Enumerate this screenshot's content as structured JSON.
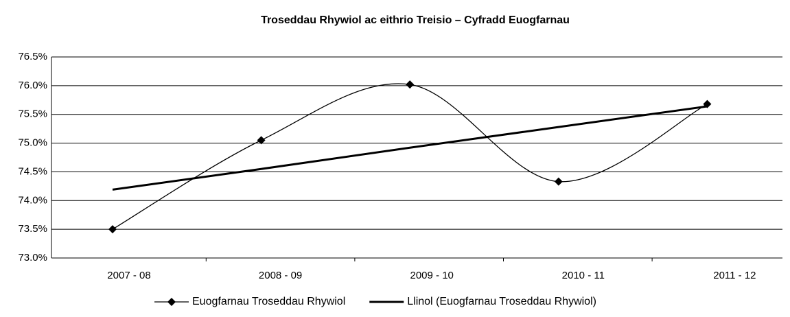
{
  "chart_data": {
    "type": "line",
    "title": "Troseddau Rhywiol ac eithrio Treisio – Cyfradd Euogfarnau",
    "categories": [
      "2007 - 08",
      "2008 - 09",
      "2009 - 10",
      "2010 - 11",
      "2011 - 12"
    ],
    "series": [
      {
        "name": "Euogfarnau Troseddau Rhywiol",
        "color": "#000000",
        "values": [
          73.5,
          75.05,
          76.02,
          74.33,
          75.68
        ],
        "smooth": true,
        "marker": "diamond"
      },
      {
        "name": "Llinol (Euogfarnau Troseddau Rhywiol)",
        "color": "#000000",
        "values": [
          74.19,
          74.55,
          74.92,
          75.28,
          75.64
        ],
        "smooth": false
      }
    ],
    "ylim": [
      73,
      76.5
    ],
    "yticks": [
      {
        "value": 73,
        "label": "73.0%"
      },
      {
        "value": 73.5,
        "label": "73.5%"
      },
      {
        "value": 74,
        "label": "74.0%"
      },
      {
        "value": 74.5,
        "label": "74.5%"
      },
      {
        "value": 75,
        "label": "75.0%"
      },
      {
        "value": 75.5,
        "label": "75.5%"
      },
      {
        "value": 76,
        "label": "76.0%"
      },
      {
        "value": 76.5,
        "label": "76.5%"
      }
    ],
    "grid": true,
    "legend": "bottom"
  }
}
